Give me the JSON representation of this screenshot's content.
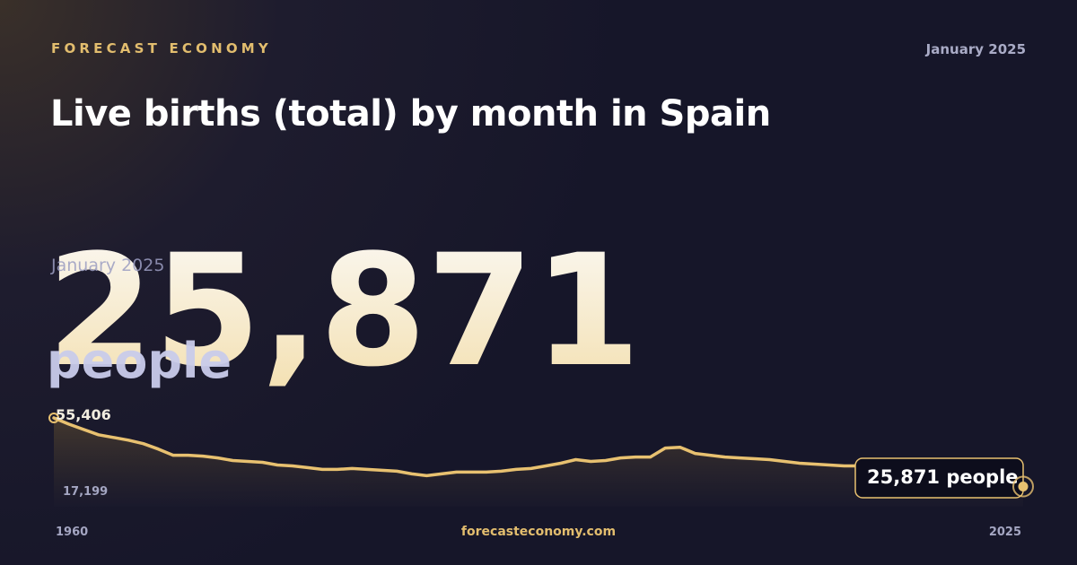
{
  "brand": "FORECAST ECONOMY",
  "date": "January 2025",
  "site": "forecasteconomy.com",
  "chart_data": {
    "type": "line",
    "title": "Live births (total) by month in Spain",
    "headline": {
      "value": 25871,
      "label": "25,871"
    },
    "headline_date": "January 2025",
    "unit": "people",
    "callout": "25,871 people",
    "color": "#e8c170",
    "x": [
      1960,
      1961,
      1962,
      1963,
      1964,
      1965,
      1966,
      1967,
      1968,
      1969,
      1970,
      1971,
      1972,
      1973,
      1974,
      1975,
      1976,
      1977,
      1978,
      1979,
      1980,
      1981,
      1982,
      1983,
      1984,
      1985,
      1986,
      1987,
      1988,
      1989,
      1990,
      1991,
      1992,
      1993,
      1994,
      1995,
      1996,
      1997,
      1998,
      1999,
      2000,
      2001,
      2002,
      2003,
      2004,
      2005,
      2006,
      2007,
      2008,
      2009,
      2010,
      2011,
      2012,
      2013,
      2014,
      2015,
      2016,
      2017,
      2018,
      2019,
      2020,
      2021,
      2022,
      2023,
      2024,
      2025
    ],
    "values": [
      55406,
      52730,
      50440,
      48150,
      47000,
      45850,
      44330,
      42030,
      39360,
      39360,
      38980,
      38210,
      37070,
      36690,
      36300,
      35160,
      34770,
      34010,
      33250,
      33250,
      33630,
      33250,
      32860,
      32480,
      31330,
      30570,
      31330,
      32100,
      32100,
      32100,
      32480,
      33250,
      33630,
      34770,
      35920,
      37450,
      36690,
      37070,
      38210,
      38590,
      38590,
      42420,
      42800,
      40120,
      39360,
      38590,
      38210,
      37830,
      37450,
      36690,
      35920,
      35540,
      35160,
      34770,
      34770,
      34770,
      34010,
      32860,
      32100,
      31720,
      31330,
      30570,
      29810,
      28660,
      27900,
      25871
    ],
    "xlim": [
      1960,
      2025
    ],
    "xticks": [
      1960,
      2025
    ],
    "ylim": [
      17199,
      55406
    ],
    "yticks": [
      {
        "value": 17199,
        "label": "17,199"
      },
      {
        "value": 55406,
        "label": "55,406"
      }
    ]
  }
}
